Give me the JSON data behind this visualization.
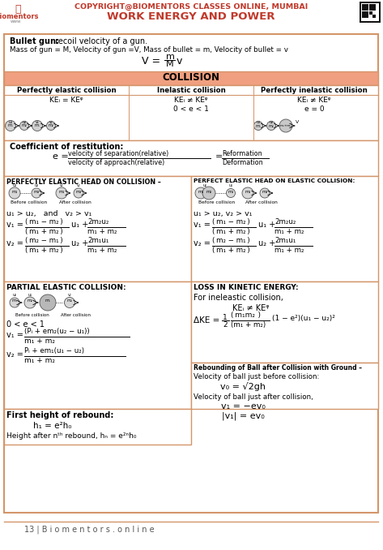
{
  "title_line1": "COPYRIGHT@BIOMENTORS CLASSES ONLINE, MUMBAI",
  "title_line2": "WORK ENERGY AND POWER",
  "title_color": "#c0392b",
  "bg_color": "#ffffff",
  "border_color": "#d4956a",
  "header_bg": "#f0a080",
  "footer_text": "13 | B i o m e n t o r s . o n l i n e"
}
